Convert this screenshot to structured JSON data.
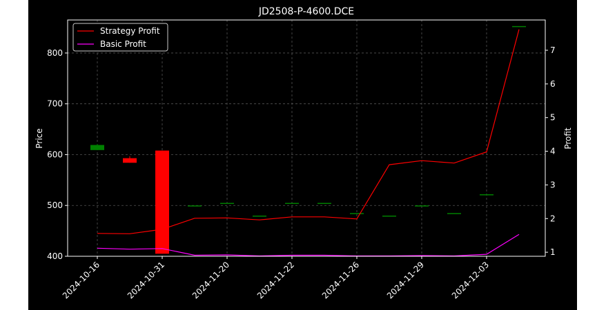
{
  "chart_data": {
    "type": "candlestick+line",
    "title": "JD2508-P-4600.DCE",
    "ylabel_left": "Price",
    "ylabel_right": "Profit",
    "ylim_left": [
      400,
      865
    ],
    "ylim_right": [
      0.88,
      7.9
    ],
    "yticks_left": [
      400,
      500,
      600,
      700,
      800
    ],
    "yticks_right": [
      1,
      2,
      3,
      4,
      5,
      6,
      7
    ],
    "xtick_labels": [
      "2024-10-16",
      "2024-10-31",
      "2024-11-20",
      "2024-11-22",
      "2024-11-26",
      "2024-11-29",
      "2024-12-03"
    ],
    "xtick_index": [
      0,
      2,
      4,
      6,
      8,
      10,
      12
    ],
    "grid": true,
    "legend_position": "top-left",
    "colors": {
      "up": "#008000",
      "down": "#ff0000",
      "strategy": "#ff0000",
      "basic": "#ff00ff",
      "grid": "#555555"
    },
    "candles": [
      {
        "i": 0,
        "open": 609,
        "close": 619,
        "high": 621,
        "low": 609
      },
      {
        "i": 1,
        "open": 593,
        "close": 584,
        "high": 597,
        "low": 584
      },
      {
        "i": 2,
        "open": 608,
        "close": 405,
        "high": 608,
        "low": 405
      },
      {
        "i": 3,
        "open": 500,
        "close": 500,
        "high": 500,
        "low": 500
      },
      {
        "i": 4,
        "open": 505,
        "close": 505,
        "high": 505,
        "low": 505
      },
      {
        "i": 5,
        "open": 480,
        "close": 480,
        "high": 480,
        "low": 480
      },
      {
        "i": 6,
        "open": 505,
        "close": 505,
        "high": 505,
        "low": 505
      },
      {
        "i": 7,
        "open": 505,
        "close": 505,
        "high": 505,
        "low": 505
      },
      {
        "i": 8,
        "open": 485,
        "close": 485,
        "high": 485,
        "low": 485
      },
      {
        "i": 9,
        "open": 480,
        "close": 480,
        "high": 480,
        "low": 480
      },
      {
        "i": 10,
        "open": 500,
        "close": 500,
        "high": 500,
        "low": 500
      },
      {
        "i": 11,
        "open": 485,
        "close": 485,
        "high": 485,
        "low": 485
      },
      {
        "i": 12,
        "open": 522,
        "close": 522,
        "high": 522,
        "low": 522
      },
      {
        "i": 13,
        "open": 853,
        "close": 853,
        "high": 853,
        "low": 853
      }
    ],
    "series": [
      {
        "name": "Strategy Profit",
        "color": "#ff0000",
        "x": [
          0,
          1,
          2,
          3,
          4,
          5,
          6,
          7,
          8,
          9,
          10,
          11,
          12,
          13
        ],
        "values": [
          1.56,
          1.55,
          1.68,
          2.01,
          2.02,
          1.96,
          2.05,
          2.05,
          1.99,
          3.6,
          3.72,
          3.65,
          3.98,
          7.62
        ]
      },
      {
        "name": "Basic Profit",
        "color": "#ff00ff",
        "x": [
          0,
          1,
          2,
          3,
          4,
          5,
          6,
          7,
          8,
          9,
          10,
          11,
          12,
          13
        ],
        "values": [
          1.12,
          1.09,
          1.11,
          0.91,
          0.92,
          0.89,
          0.91,
          0.91,
          0.89,
          0.89,
          0.9,
          0.89,
          0.94,
          1.53
        ]
      }
    ]
  }
}
